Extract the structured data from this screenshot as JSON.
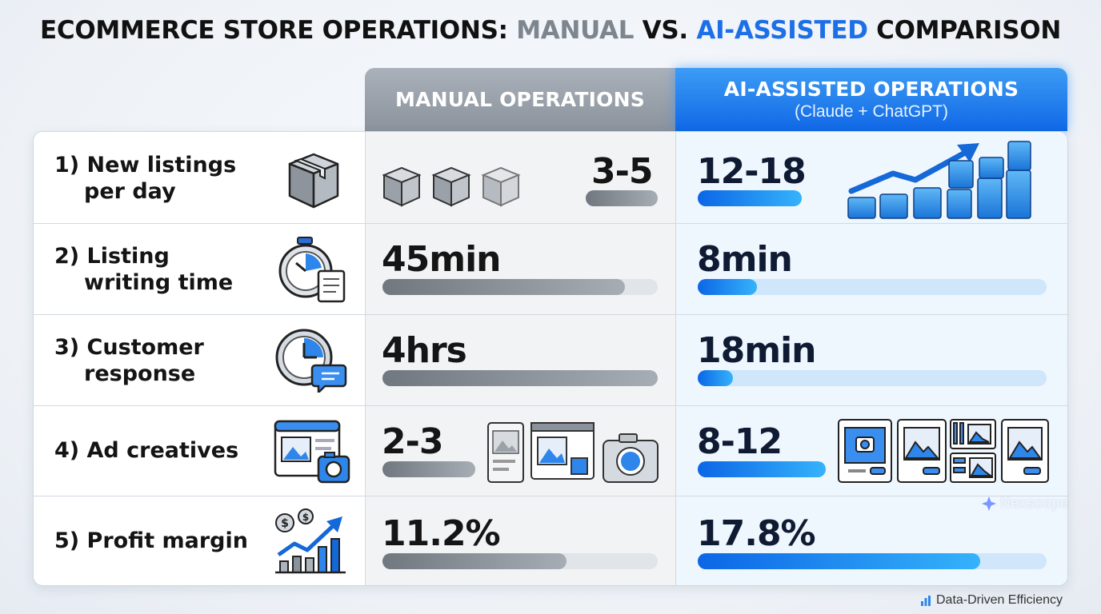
{
  "title": {
    "part1": "ECOMMERCE STORE OPERATIONS: ",
    "manual": "MANUAL",
    "vs": " VS. ",
    "ai": "AI-ASSISTED",
    "part2": " COMPARISON"
  },
  "headers": {
    "manual": "MANUAL OPERATIONS",
    "ai": "AI-ASSISTED OPERATIONS",
    "ai_sub": "(Claude + ChatGPT)"
  },
  "rows": [
    {
      "line1": "1)  New listings",
      "line2": "per day",
      "manual": "3-5",
      "ai": "12-18",
      "manual_fill": 1.0,
      "ai_fill": 1.0,
      "icon": "box-icon"
    },
    {
      "line1": "2) Listing",
      "line2": "writing time",
      "manual": "45min",
      "ai": "8min",
      "manual_fill": 0.88,
      "ai_fill": 0.17,
      "icon": "stopwatch-document-icon"
    },
    {
      "line1": "3) Customer",
      "line2": "response",
      "manual": "4hrs",
      "ai": "18min",
      "manual_fill": 1.0,
      "ai_fill": 0.1,
      "icon": "clock-chat-icon"
    },
    {
      "line1": "4) Ad creatives",
      "line2": "",
      "manual": "2-3",
      "ai": "8-12",
      "manual_fill": 1.0,
      "ai_fill": 1.0,
      "icon": "ad-image-camera-icon"
    },
    {
      "line1": "5) Profit margin",
      "line2": "",
      "manual": "11.2%",
      "ai": "17.8%",
      "manual_fill": 0.67,
      "ai_fill": 0.81,
      "icon": "profit-chart-icon"
    }
  ],
  "watermark": "Nexscope",
  "footer": "Data-Driven Efficiency",
  "colors": {
    "accent_blue": "#1d6fe8",
    "manual_gray": "#7d858f"
  }
}
